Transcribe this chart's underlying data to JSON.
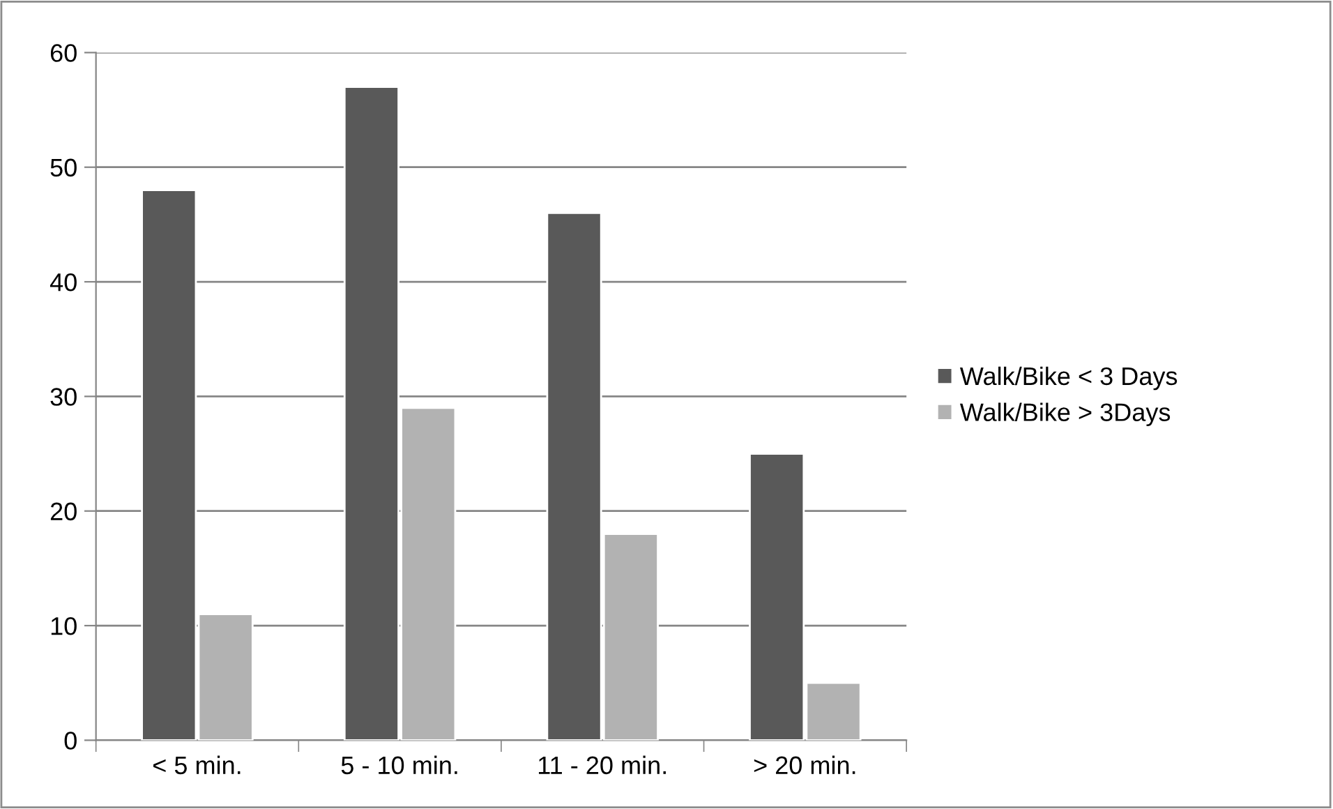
{
  "chart_data": {
    "type": "bar",
    "categories": [
      "< 5 min.",
      "5 - 10 min.",
      "11 - 20 min.",
      "> 20 min."
    ],
    "series": [
      {
        "name": "Walk/Bike < 3 Days",
        "color": "#595959",
        "values": [
          48,
          57,
          46,
          25
        ]
      },
      {
        "name": "Walk/Bike > 3Days",
        "color": "#b2b2b2",
        "values": [
          11,
          29,
          18,
          5
        ]
      }
    ],
    "ylim": [
      0,
      60
    ],
    "yticks": [
      0,
      10,
      20,
      30,
      40,
      50,
      60
    ],
    "grid": "y",
    "legend": "right"
  }
}
